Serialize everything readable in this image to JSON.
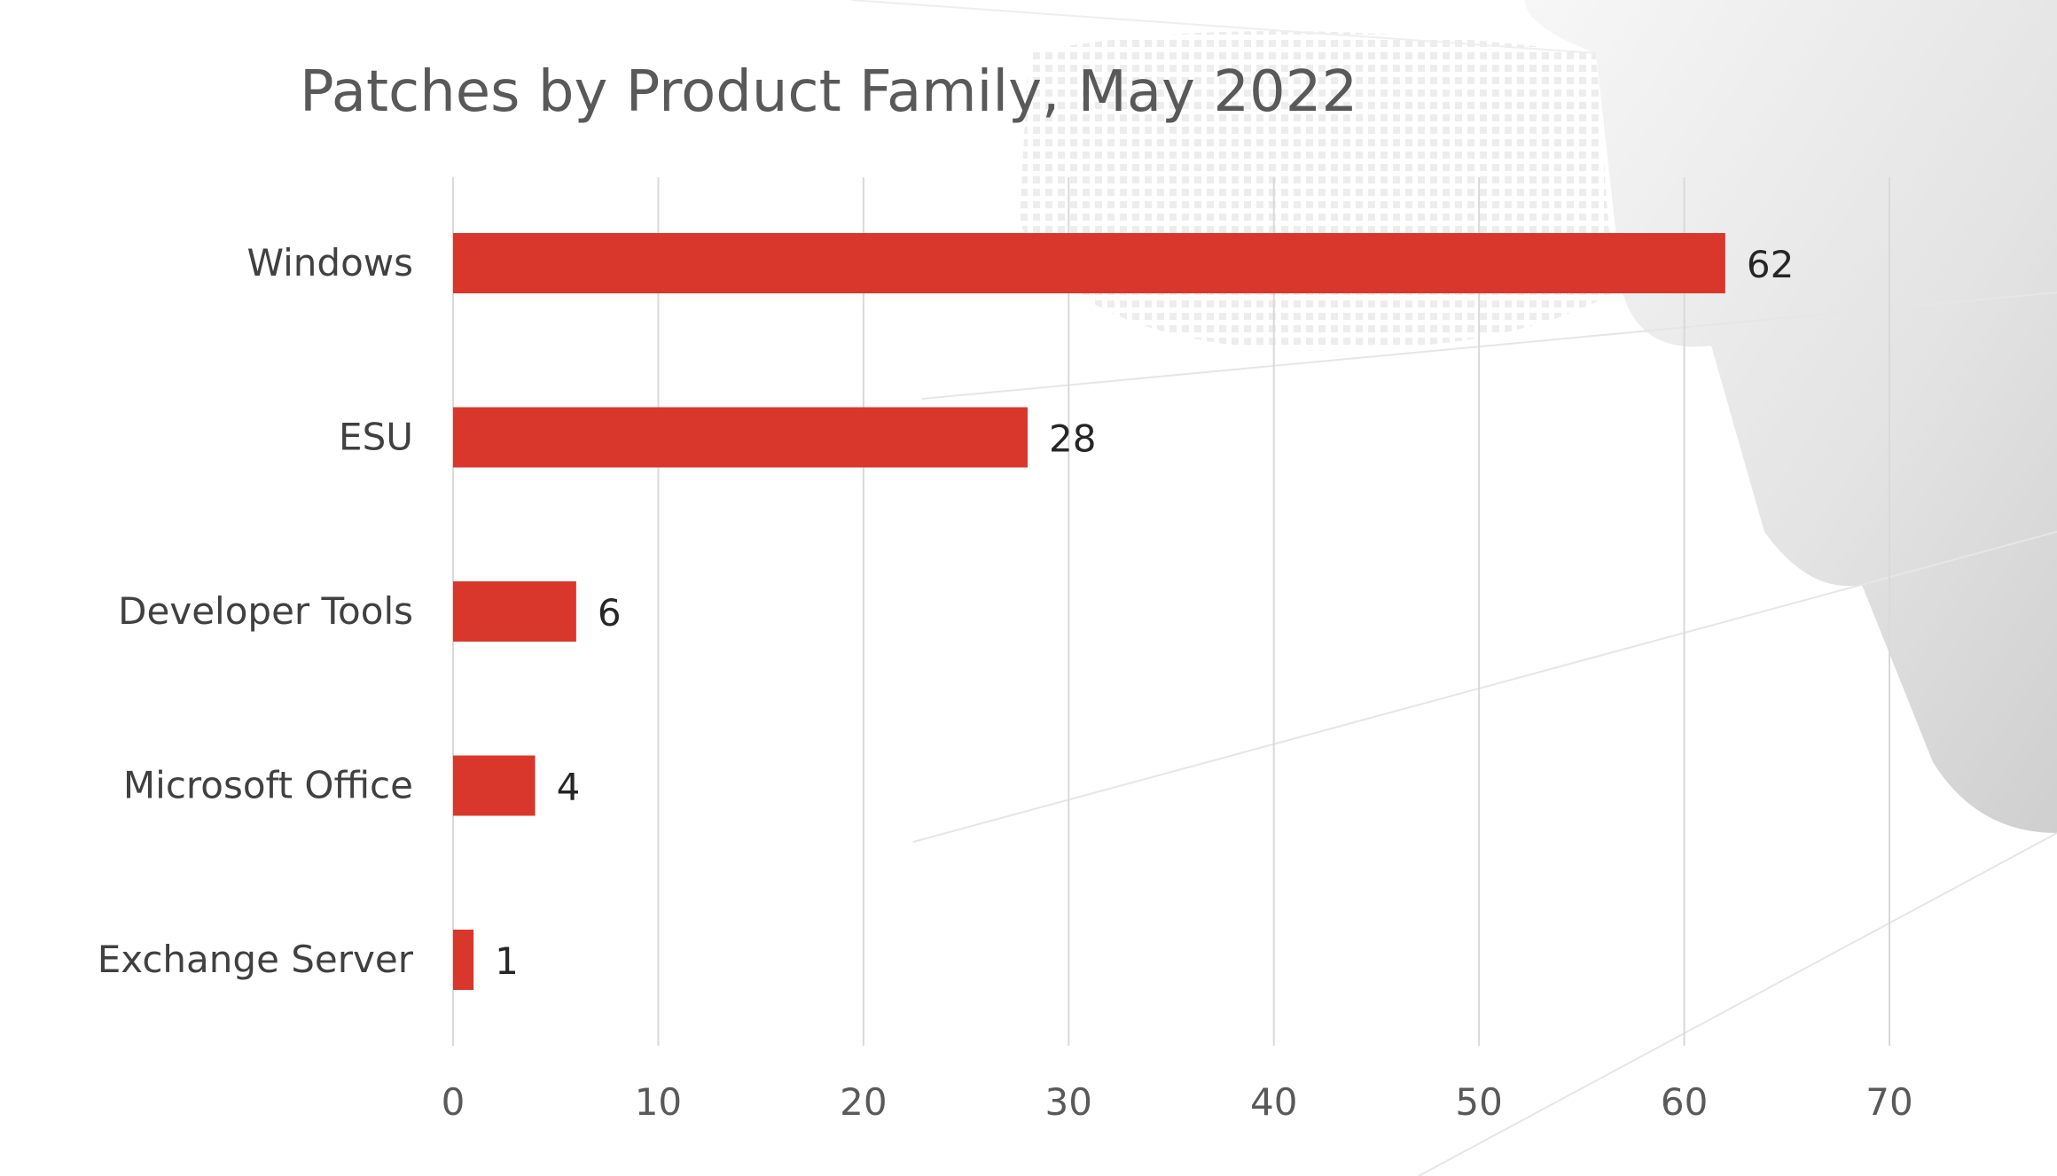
{
  "chart_data": {
    "type": "bar",
    "orientation": "horizontal",
    "title": "Patches by Product Family, May 2022",
    "xlabel": "",
    "ylabel": "",
    "categories": [
      "Windows",
      "ESU",
      "Developer Tools",
      "Microsoft Office",
      "Exchange Server"
    ],
    "series": [
      {
        "values": [
          62,
          28,
          6,
          4,
          1
        ]
      }
    ],
    "xlim": [
      0,
      70
    ],
    "xticks": [
      "0",
      "10",
      "20",
      "30",
      "40",
      "50",
      "60",
      "70"
    ],
    "grid": true,
    "data_labels": true,
    "legend": "none",
    "colors": {
      "bar": "#d9372b",
      "grid": "#d9d9d9",
      "background_shape": "#e6e6e6"
    }
  }
}
